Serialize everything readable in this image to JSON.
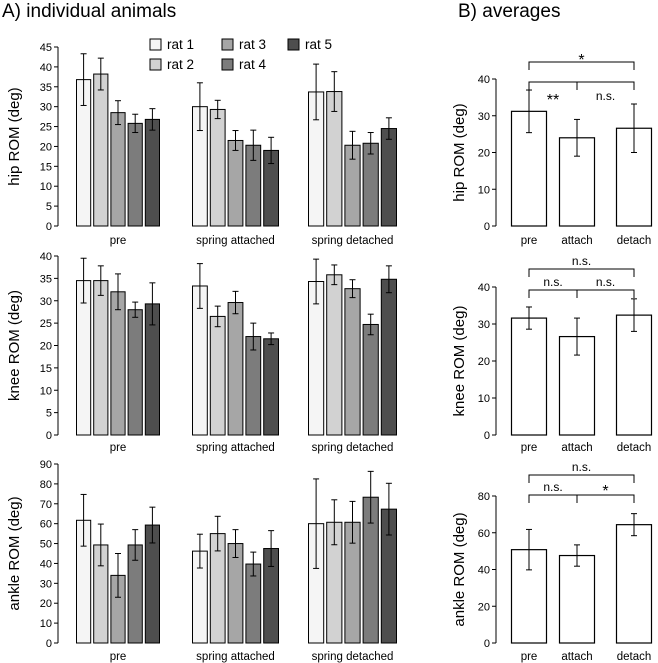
{
  "panels": {
    "a_title": "A)  individual animals",
    "b_title": "B)  averages"
  },
  "legend": [
    "rat 1",
    "rat 2",
    "rat 3",
    "rat 4",
    "rat 5"
  ],
  "colors": {
    "rat 1": "#f5f5f5",
    "rat 2": "#d2d2d2",
    "rat 3": "#a6a6a6",
    "rat 4": "#7c7c7c",
    "rat 5": "#4e4e4e",
    "average": "#ffffff"
  },
  "chart_data": [
    {
      "id": "a_hip",
      "type": "bar",
      "ylabel": "hip ROM (deg)",
      "ylim": [
        0,
        45
      ],
      "yticks": [
        0,
        5,
        10,
        15,
        20,
        25,
        30,
        35,
        40,
        45
      ],
      "categories": [
        "pre",
        "spring attached",
        "spring detached"
      ],
      "series": [
        {
          "name": "rat 1",
          "values": [
            36.8,
            30.0,
            33.7
          ],
          "errors": [
            6.5,
            6.0,
            7.0
          ]
        },
        {
          "name": "rat 2",
          "values": [
            38.2,
            29.3,
            33.8
          ],
          "errors": [
            4.0,
            2.3,
            5.0
          ]
        },
        {
          "name": "rat 3",
          "values": [
            28.5,
            21.5,
            20.3
          ],
          "errors": [
            3.0,
            2.5,
            3.5
          ]
        },
        {
          "name": "rat 4",
          "values": [
            25.8,
            20.3,
            20.8
          ],
          "errors": [
            2.3,
            3.8,
            2.7
          ]
        },
        {
          "name": "rat 5",
          "values": [
            26.8,
            19.0,
            24.5
          ],
          "errors": [
            2.7,
            3.3,
            2.7
          ]
        }
      ]
    },
    {
      "id": "a_knee",
      "type": "bar",
      "ylabel": "knee ROM (deg)",
      "ylim": [
        0,
        40
      ],
      "yticks": [
        0,
        5,
        10,
        15,
        20,
        25,
        30,
        35,
        40
      ],
      "categories": [
        "pre",
        "spring attached",
        "spring detached"
      ],
      "series": [
        {
          "name": "rat 1",
          "values": [
            34.5,
            33.3,
            34.3
          ],
          "errors": [
            5.0,
            5.0,
            5.0
          ]
        },
        {
          "name": "rat 2",
          "values": [
            34.5,
            26.5,
            35.8
          ],
          "errors": [
            3.3,
            2.3,
            2.2
          ]
        },
        {
          "name": "rat 3",
          "values": [
            32.0,
            29.6,
            32.7
          ],
          "errors": [
            4.0,
            2.5,
            2.0
          ]
        },
        {
          "name": "rat 4",
          "values": [
            28.0,
            22.0,
            24.7
          ],
          "errors": [
            1.7,
            3.0,
            2.3
          ]
        },
        {
          "name": "rat 5",
          "values": [
            29.3,
            21.5,
            34.8
          ],
          "errors": [
            4.7,
            1.3,
            3.0
          ]
        }
      ]
    },
    {
      "id": "a_ankle",
      "type": "bar",
      "ylabel": "ankle ROM (deg)",
      "ylim": [
        0,
        90
      ],
      "yticks": [
        0,
        10,
        20,
        30,
        40,
        50,
        60,
        70,
        80,
        90
      ],
      "categories": [
        "pre",
        "spring attached",
        "spring detached"
      ],
      "series": [
        {
          "name": "rat 1",
          "values": [
            61.7,
            46.2,
            60.0
          ],
          "errors": [
            13.0,
            8.5,
            22.5
          ]
        },
        {
          "name": "rat 2",
          "values": [
            49.3,
            55.0,
            60.7
          ],
          "errors": [
            10.5,
            8.7,
            11.3
          ]
        },
        {
          "name": "rat 3",
          "values": [
            34.0,
            50.0,
            60.7
          ],
          "errors": [
            11.0,
            7.0,
            10.5
          ]
        },
        {
          "name": "rat 4",
          "values": [
            49.3,
            39.7,
            73.3
          ],
          "errors": [
            7.7,
            6.0,
            13.0
          ]
        },
        {
          "name": "rat 5",
          "values": [
            59.3,
            47.5,
            67.3
          ],
          "errors": [
            9.0,
            9.0,
            13.0
          ]
        }
      ]
    },
    {
      "id": "b_hip",
      "type": "bar",
      "ylabel": "hip ROM (deg)",
      "ylim": [
        0,
        40
      ],
      "yticks": [
        0,
        10,
        20,
        30,
        40
      ],
      "categories": [
        "pre",
        "attach",
        "detach"
      ],
      "values": [
        31.2,
        24.0,
        26.6
      ],
      "errors": [
        5.8,
        5.0,
        6.6
      ],
      "comparisons": [
        {
          "from": 0,
          "to": 2,
          "label": "*"
        },
        {
          "from": 0,
          "to": 1,
          "label": "**"
        },
        {
          "from": 1,
          "to": 2,
          "label": "n.s."
        }
      ]
    },
    {
      "id": "b_knee",
      "type": "bar",
      "ylabel": "knee ROM (deg)",
      "ylim": [
        0,
        40
      ],
      "yticks": [
        0,
        10,
        20,
        30,
        40
      ],
      "categories": [
        "pre",
        "attach",
        "detach"
      ],
      "values": [
        31.6,
        26.6,
        32.4
      ],
      "errors": [
        3.0,
        5.0,
        4.4
      ],
      "comparisons": [
        {
          "from": 0,
          "to": 2,
          "label": "n.s."
        },
        {
          "from": 0,
          "to": 1,
          "label": "n.s."
        },
        {
          "from": 1,
          "to": 2,
          "label": "n.s."
        }
      ]
    },
    {
      "id": "b_ankle",
      "type": "bar",
      "ylabel": "ankle ROM (deg)",
      "ylim": [
        0,
        80
      ],
      "yticks": [
        0,
        20,
        40,
        60,
        80
      ],
      "categories": [
        "pre",
        "attach",
        "detach"
      ],
      "values": [
        50.8,
        47.6,
        64.4
      ],
      "errors": [
        11.0,
        5.8,
        6.0
      ],
      "comparisons": [
        {
          "from": 0,
          "to": 2,
          "label": "n.s."
        },
        {
          "from": 0,
          "to": 1,
          "label": "n.s."
        },
        {
          "from": 1,
          "to": 2,
          "label": "*"
        }
      ]
    }
  ]
}
